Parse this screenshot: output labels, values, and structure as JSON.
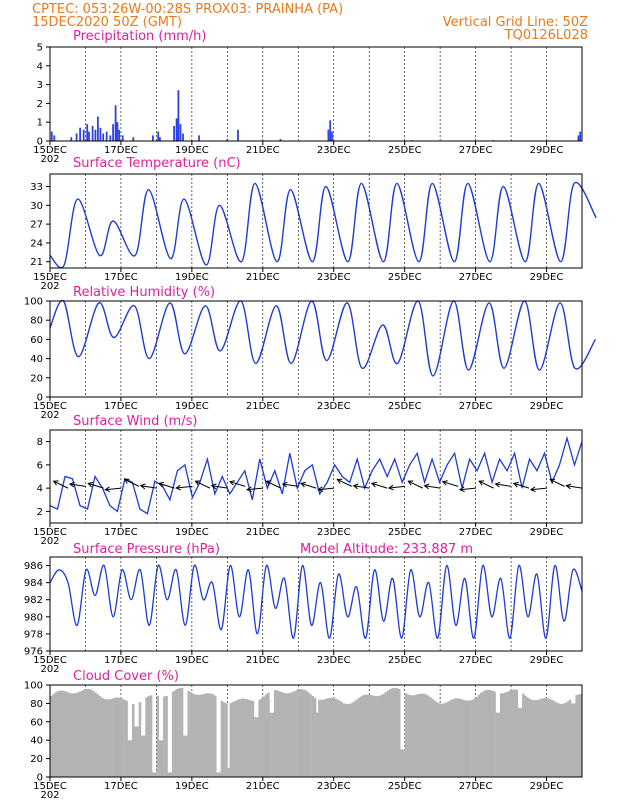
{
  "header": {
    "line1_left": "CPTEC:   053:26W-00:28S   PROX03: PRAINHA (PA)",
    "line2_left": "15DEC2020 50Z (GMT)",
    "line2_right": "Vertical Grid Line: 50Z",
    "line3_right": "TQ0126L028"
  },
  "colors": {
    "header": "#e87a1c",
    "title": "#e0209a",
    "series": "#1f3bd6",
    "bars": "#2d42e8",
    "cloud": "#b3b3b3",
    "wind_arrow": "#000000"
  },
  "x_tick_labels": [
    "15DEC",
    "17DEC",
    "19DEC",
    "21DEC",
    "23DEC",
    "25DEC",
    "27DEC",
    "29DEC"
  ],
  "x_tick_sublabel": "202",
  "chart_data": [
    {
      "type": "bar",
      "title": "Precipitation (mm/h)",
      "ylim": [
        0,
        5
      ],
      "yticks": [
        0,
        1,
        2,
        3,
        4,
        5
      ],
      "x_start_day": 0,
      "x_end_day": 15,
      "bars": [
        [
          0.05,
          0.5
        ],
        [
          0.12,
          0.3
        ],
        [
          0.6,
          0.2
        ],
        [
          0.75,
          0.4
        ],
        [
          0.85,
          0.7
        ],
        [
          0.95,
          0.6
        ],
        [
          1.05,
          0.9
        ],
        [
          1.1,
          0.5
        ],
        [
          1.2,
          0.8
        ],
        [
          1.28,
          0.6
        ],
        [
          1.35,
          1.3
        ],
        [
          1.42,
          0.7
        ],
        [
          1.5,
          0.4
        ],
        [
          1.6,
          0.5
        ],
        [
          1.7,
          0.3
        ],
        [
          1.78,
          0.9
        ],
        [
          1.85,
          1.9
        ],
        [
          1.9,
          1.0
        ],
        [
          1.95,
          0.6
        ],
        [
          2.05,
          0.3
        ],
        [
          2.35,
          0.2
        ],
        [
          2.9,
          0.3
        ],
        [
          3.05,
          0.5
        ],
        [
          3.1,
          0.2
        ],
        [
          3.5,
          0.8
        ],
        [
          3.57,
          1.2
        ],
        [
          3.62,
          2.7
        ],
        [
          3.68,
          0.9
        ],
        [
          3.75,
          0.4
        ],
        [
          4.2,
          0.3
        ],
        [
          5.0,
          0.1
        ],
        [
          5.3,
          0.6
        ],
        [
          6.5,
          0.1
        ],
        [
          7.85,
          0.6
        ],
        [
          7.9,
          1.1
        ],
        [
          7.95,
          0.5
        ],
        [
          9.0,
          0.05
        ],
        [
          10.2,
          0.05
        ],
        [
          12.5,
          0.05
        ],
        [
          14.9,
          0.3
        ],
        [
          14.95,
          0.5
        ]
      ]
    },
    {
      "type": "line",
      "title": "Surface Temperature (nC)",
      "ylim": [
        20,
        35
      ],
      "yticks": [
        21,
        24,
        27,
        30,
        33
      ],
      "x_start_day": 0,
      "x_end_day": 15,
      "day_min": [
        20.5,
        22.0,
        22.0,
        21.5,
        20.5,
        21.0,
        21.0,
        21.0,
        21.0,
        21.0,
        21.0,
        21.0,
        21.0,
        21.0,
        21.0,
        28.0
      ],
      "day_max": [
        31.0,
        27.5,
        32.5,
        31.0,
        30.0,
        33.5,
        32.5,
        33.0,
        33.5,
        33.5,
        33.5,
        33.5,
        33.0,
        33.5,
        33.5
      ]
    },
    {
      "type": "line",
      "title": "Relative Humidity (%)",
      "ylim": [
        0,
        100
      ],
      "yticks": [
        0,
        20,
        40,
        60,
        80,
        100
      ],
      "x_start_day": 0,
      "x_end_day": 15,
      "day_max": [
        100,
        98,
        95,
        98,
        95,
        100,
        95,
        100,
        98,
        75,
        100,
        100,
        98,
        100,
        98,
        60
      ],
      "day_min": [
        42,
        62,
        40,
        45,
        48,
        35,
        35,
        38,
        30,
        35,
        22,
        28,
        30,
        28,
        30
      ]
    },
    {
      "type": "line",
      "title": "Surface Wind (m/s)",
      "ylim": [
        1,
        9
      ],
      "yticks": [
        2,
        4,
        6,
        8
      ],
      "x_start_day": 0,
      "x_end_day": 15,
      "values": [
        2.5,
        2.2,
        5.0,
        4.8,
        2.5,
        2.2,
        5.0,
        4.0,
        2.5,
        2.0,
        4.8,
        4.5,
        2.2,
        1.8,
        4.6,
        4.2,
        3.0,
        5.5,
        6.0,
        3.2,
        4.5,
        6.5,
        3.5,
        5.0,
        3.5,
        4.5,
        5.5,
        3.0,
        6.5,
        4.0,
        5.5,
        3.5,
        7.0,
        4.0,
        5.5,
        6.0,
        3.5,
        4.5,
        6.0,
        5.0,
        4.5,
        6.5,
        4.0,
        5.5,
        6.5,
        5.0,
        6.5,
        4.5,
        6.0,
        7.0,
        4.5,
        6.5,
        4.5,
        6.0,
        7.0,
        4.0,
        6.5,
        5.5,
        7.0,
        4.5,
        6.5,
        5.5,
        7.0,
        4.0,
        6.5,
        5.5,
        7.0,
        4.5,
        6.0,
        8.3,
        6.0,
        8.0
      ],
      "arrows_x_day": [
        0.0,
        0.5,
        1.0,
        1.5,
        2.0,
        2.5,
        3.0,
        3.5,
        4.0,
        4.5,
        5.0,
        5.5,
        6.0,
        6.5,
        7.0,
        7.5,
        8.0,
        8.5,
        9.0,
        9.5,
        10.0,
        10.5,
        11.0,
        11.5,
        12.0,
        12.5,
        13.0,
        13.5,
        14.0,
        14.5
      ]
    },
    {
      "type": "line",
      "title": "Surface Pressure (hPa)",
      "annotation": "Model Altitude: 233.887  m",
      "ylim": [
        976,
        987
      ],
      "yticks": [
        976,
        978,
        980,
        982,
        984,
        986
      ],
      "x_start_day": 0,
      "x_end_day": 15,
      "values": [
        984,
        985.5,
        984,
        979,
        985.5,
        982.5,
        986,
        980,
        985.5,
        982,
        985.5,
        979,
        986,
        982,
        985.5,
        979,
        986,
        982,
        984,
        978.5,
        986,
        980,
        985.5,
        978,
        986,
        981,
        984.5,
        977.5,
        986,
        979,
        984,
        977.5,
        985,
        980,
        983.5,
        977.5,
        985.5,
        979.5,
        984.5,
        977.5,
        985.5,
        980,
        984,
        977.5,
        986,
        979,
        984.5,
        977.5,
        986,
        980,
        984.5,
        977.5,
        986,
        980,
        985,
        977.5,
        986,
        979.5,
        985.5,
        983
      ]
    },
    {
      "type": "bar",
      "title": "Cloud Cover (%)",
      "ylim": [
        0,
        100
      ],
      "yticks": [
        0,
        20,
        40,
        60,
        80,
        100
      ],
      "x_start_day": 0,
      "x_end_day": 15,
      "dips": [
        [
          2.2,
          40
        ],
        [
          2.4,
          55
        ],
        [
          2.6,
          45
        ],
        [
          2.9,
          5
        ],
        [
          3.1,
          40
        ],
        [
          3.35,
          5
        ],
        [
          3.8,
          45
        ],
        [
          4.7,
          5
        ],
        [
          5.0,
          10
        ],
        [
          5.8,
          65
        ],
        [
          6.2,
          70
        ],
        [
          7.5,
          70
        ],
        [
          8.3,
          80
        ],
        [
          9.9,
          30
        ],
        [
          12.6,
          70
        ],
        [
          13.2,
          75
        ],
        [
          14.7,
          80
        ]
      ]
    }
  ]
}
